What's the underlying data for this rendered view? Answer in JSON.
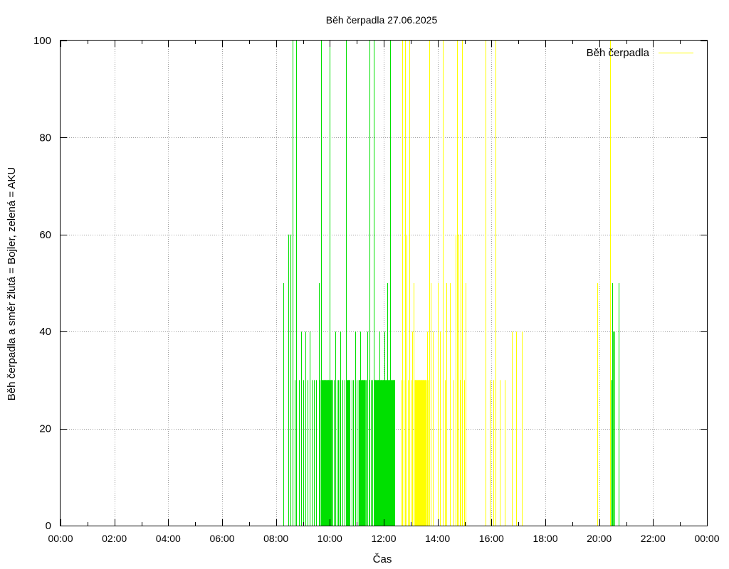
{
  "chart_data": {
    "type": "impulse",
    "title": "Běh čerpadla 27.06.2025",
    "xlabel": "Čas",
    "ylabel": "Běh čerpadla a směr žlutá = Bojler, zelená = AKU",
    "xlim_hours": [
      0,
      24
    ],
    "ylim": [
      0,
      100
    ],
    "x_ticks": [
      "00:00",
      "02:00",
      "04:00",
      "06:00",
      "08:00",
      "10:00",
      "12:00",
      "14:00",
      "16:00",
      "18:00",
      "20:00",
      "22:00",
      "00:00"
    ],
    "y_ticks": [
      0,
      20,
      40,
      60,
      80,
      100
    ],
    "grid": true,
    "legend": {
      "position": "top-right",
      "label": "Běh čerpadla"
    },
    "colors": {
      "green": "#00e000",
      "yellow": "#ffff00"
    },
    "series": [
      {
        "name": "Běh čerpadla",
        "color": "yellow",
        "points": [
          [
            "12:39",
            30
          ],
          [
            "12:41",
            100
          ],
          [
            "12:45",
            30
          ],
          [
            "12:48",
            100
          ],
          [
            "12:51",
            60
          ],
          [
            "12:54",
            30
          ],
          [
            "12:57",
            100
          ],
          [
            "13:00",
            30
          ],
          [
            "13:03",
            40
          ],
          [
            "13:06",
            50
          ],
          [
            "13:09",
            30
          ],
          [
            "13:12",
            30
          ],
          [
            "13:16",
            30
          ],
          [
            "13:20",
            30
          ],
          [
            "13:24",
            30
          ],
          [
            "13:28",
            30
          ],
          [
            "13:32",
            30
          ],
          [
            "13:36",
            40
          ],
          [
            "13:39",
            30
          ],
          [
            "13:42",
            100
          ],
          [
            "13:45",
            50
          ],
          [
            "13:50",
            40
          ],
          [
            "14:00",
            50
          ],
          [
            "14:06",
            40
          ],
          [
            "14:12",
            100
          ],
          [
            "14:16",
            30
          ],
          [
            "14:20",
            50
          ],
          [
            "14:28",
            50
          ],
          [
            "14:35",
            30
          ],
          [
            "14:40",
            60
          ],
          [
            "14:43",
            100
          ],
          [
            "14:46",
            60
          ],
          [
            "14:49",
            30
          ],
          [
            "14:52",
            60
          ],
          [
            "14:55",
            100
          ],
          [
            "14:59",
            30
          ],
          [
            "15:03",
            50
          ],
          [
            "15:47",
            100
          ],
          [
            "15:56",
            30
          ],
          [
            "16:05",
            30
          ],
          [
            "16:09",
            100
          ],
          [
            "16:18",
            30
          ],
          [
            "16:30",
            30
          ],
          [
            "16:45",
            40
          ],
          [
            "16:55",
            40
          ],
          [
            "17:07",
            40
          ],
          [
            "19:55",
            50
          ],
          [
            "20:24",
            100
          ]
        ]
      },
      {
        "name": "",
        "color": "green",
        "points": [
          [
            "08:17",
            50
          ],
          [
            "08:28",
            60
          ],
          [
            "08:33",
            60
          ],
          [
            "08:37",
            100
          ],
          [
            "08:41",
            30
          ],
          [
            "08:45",
            100
          ],
          [
            "08:51",
            30
          ],
          [
            "08:56",
            40
          ],
          [
            "09:00",
            30
          ],
          [
            "09:05",
            40
          ],
          [
            "09:10",
            30
          ],
          [
            "09:15",
            40
          ],
          [
            "09:20",
            30
          ],
          [
            "09:25",
            30
          ],
          [
            "09:30",
            30
          ],
          [
            "09:35",
            50
          ],
          [
            "09:38",
            30
          ],
          [
            "09:41",
            100
          ],
          [
            "09:44",
            30
          ],
          [
            "09:47",
            30
          ],
          [
            "09:50",
            30
          ],
          [
            "09:53",
            30
          ],
          [
            "09:56",
            30
          ],
          [
            "10:00",
            100
          ],
          [
            "10:03",
            30
          ],
          [
            "10:06",
            30
          ],
          [
            "10:09",
            30
          ],
          [
            "10:12",
            40
          ],
          [
            "10:15",
            30
          ],
          [
            "10:18",
            30
          ],
          [
            "10:21",
            30
          ],
          [
            "10:24",
            40
          ],
          [
            "10:28",
            30
          ],
          [
            "10:32",
            30
          ],
          [
            "10:36",
            100
          ],
          [
            "10:40",
            30
          ],
          [
            "10:44",
            30
          ],
          [
            "10:48",
            30
          ],
          [
            "10:52",
            30
          ],
          [
            "10:56",
            40
          ],
          [
            "11:00",
            30
          ],
          [
            "11:04",
            30
          ],
          [
            "11:08",
            40
          ],
          [
            "11:12",
            30
          ],
          [
            "11:16",
            30
          ],
          [
            "11:20",
            30
          ],
          [
            "11:23",
            40
          ],
          [
            "11:26",
            30
          ],
          [
            "11:29",
            100
          ],
          [
            "11:32",
            30
          ],
          [
            "11:35",
            30
          ],
          [
            "11:38",
            100
          ],
          [
            "11:41",
            30
          ],
          [
            "11:44",
            30
          ],
          [
            "11:47",
            30
          ],
          [
            "11:50",
            40
          ],
          [
            "11:53",
            30
          ],
          [
            "11:56",
            30
          ],
          [
            "11:59",
            30
          ],
          [
            "12:02",
            40
          ],
          [
            "12:05",
            30
          ],
          [
            "12:08",
            50
          ],
          [
            "12:11",
            30
          ],
          [
            "12:14",
            100
          ],
          [
            "12:17",
            30
          ],
          [
            "12:20",
            30
          ],
          [
            "12:23",
            30
          ],
          [
            "20:27",
            30
          ],
          [
            "20:29",
            50
          ],
          [
            "20:31",
            40
          ],
          [
            "20:34",
            40
          ],
          [
            "20:44",
            50
          ]
        ]
      }
    ]
  }
}
